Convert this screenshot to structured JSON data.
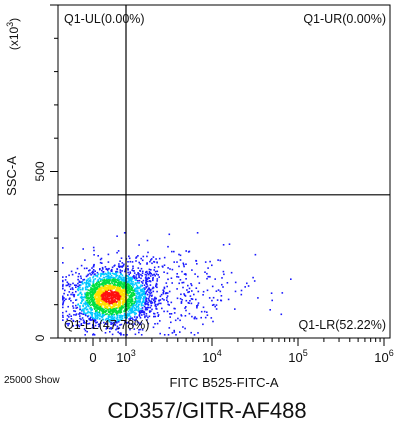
{
  "chart_data": {
    "type": "scatter",
    "xlabel": "FITC B525-FITC-A",
    "ylabel": "SSC-A",
    "y_multiplier_label": [
      "(x10",
      "3",
      ")"
    ],
    "x_scale": "biexponential",
    "x_ticks": [
      {
        "value": 0,
        "base": "0",
        "exp": ""
      },
      {
        "value": 1000,
        "base": "10",
        "exp": "3"
      },
      {
        "value": 10000,
        "base": "10",
        "exp": "4"
      },
      {
        "value": 100000,
        "base": "10",
        "exp": "5"
      },
      {
        "value": 1000000,
        "base": "10",
        "exp": "6"
      }
    ],
    "y_ticks": [
      {
        "value": 0,
        "label": "0"
      },
      {
        "value": 500,
        "label": "500"
      }
    ],
    "ylim": [
      0,
      1000
    ],
    "gate": {
      "x": 1000,
      "y": 430
    },
    "quadrants": [
      {
        "name": "Q1-UL",
        "percent": "0.00%",
        "text": "Q1-UL(0.00%)"
      },
      {
        "name": "Q1-UR",
        "percent": "0.00%",
        "text": "Q1-UR(0.00%)"
      },
      {
        "name": "Q1-LL",
        "percent": "47.78%",
        "text": "Q1-LL(47.78%)"
      },
      {
        "name": "Q1-LR",
        "percent": "52.22%",
        "text": "Q1-LR(52.22%)"
      }
    ],
    "density_colors": [
      "#1a1aff",
      "#00c8ff",
      "#00e040",
      "#ffe000",
      "#ff1010"
    ]
  },
  "event_count_label": "25000 Show",
  "caption": "CD357/GITR-AF488"
}
